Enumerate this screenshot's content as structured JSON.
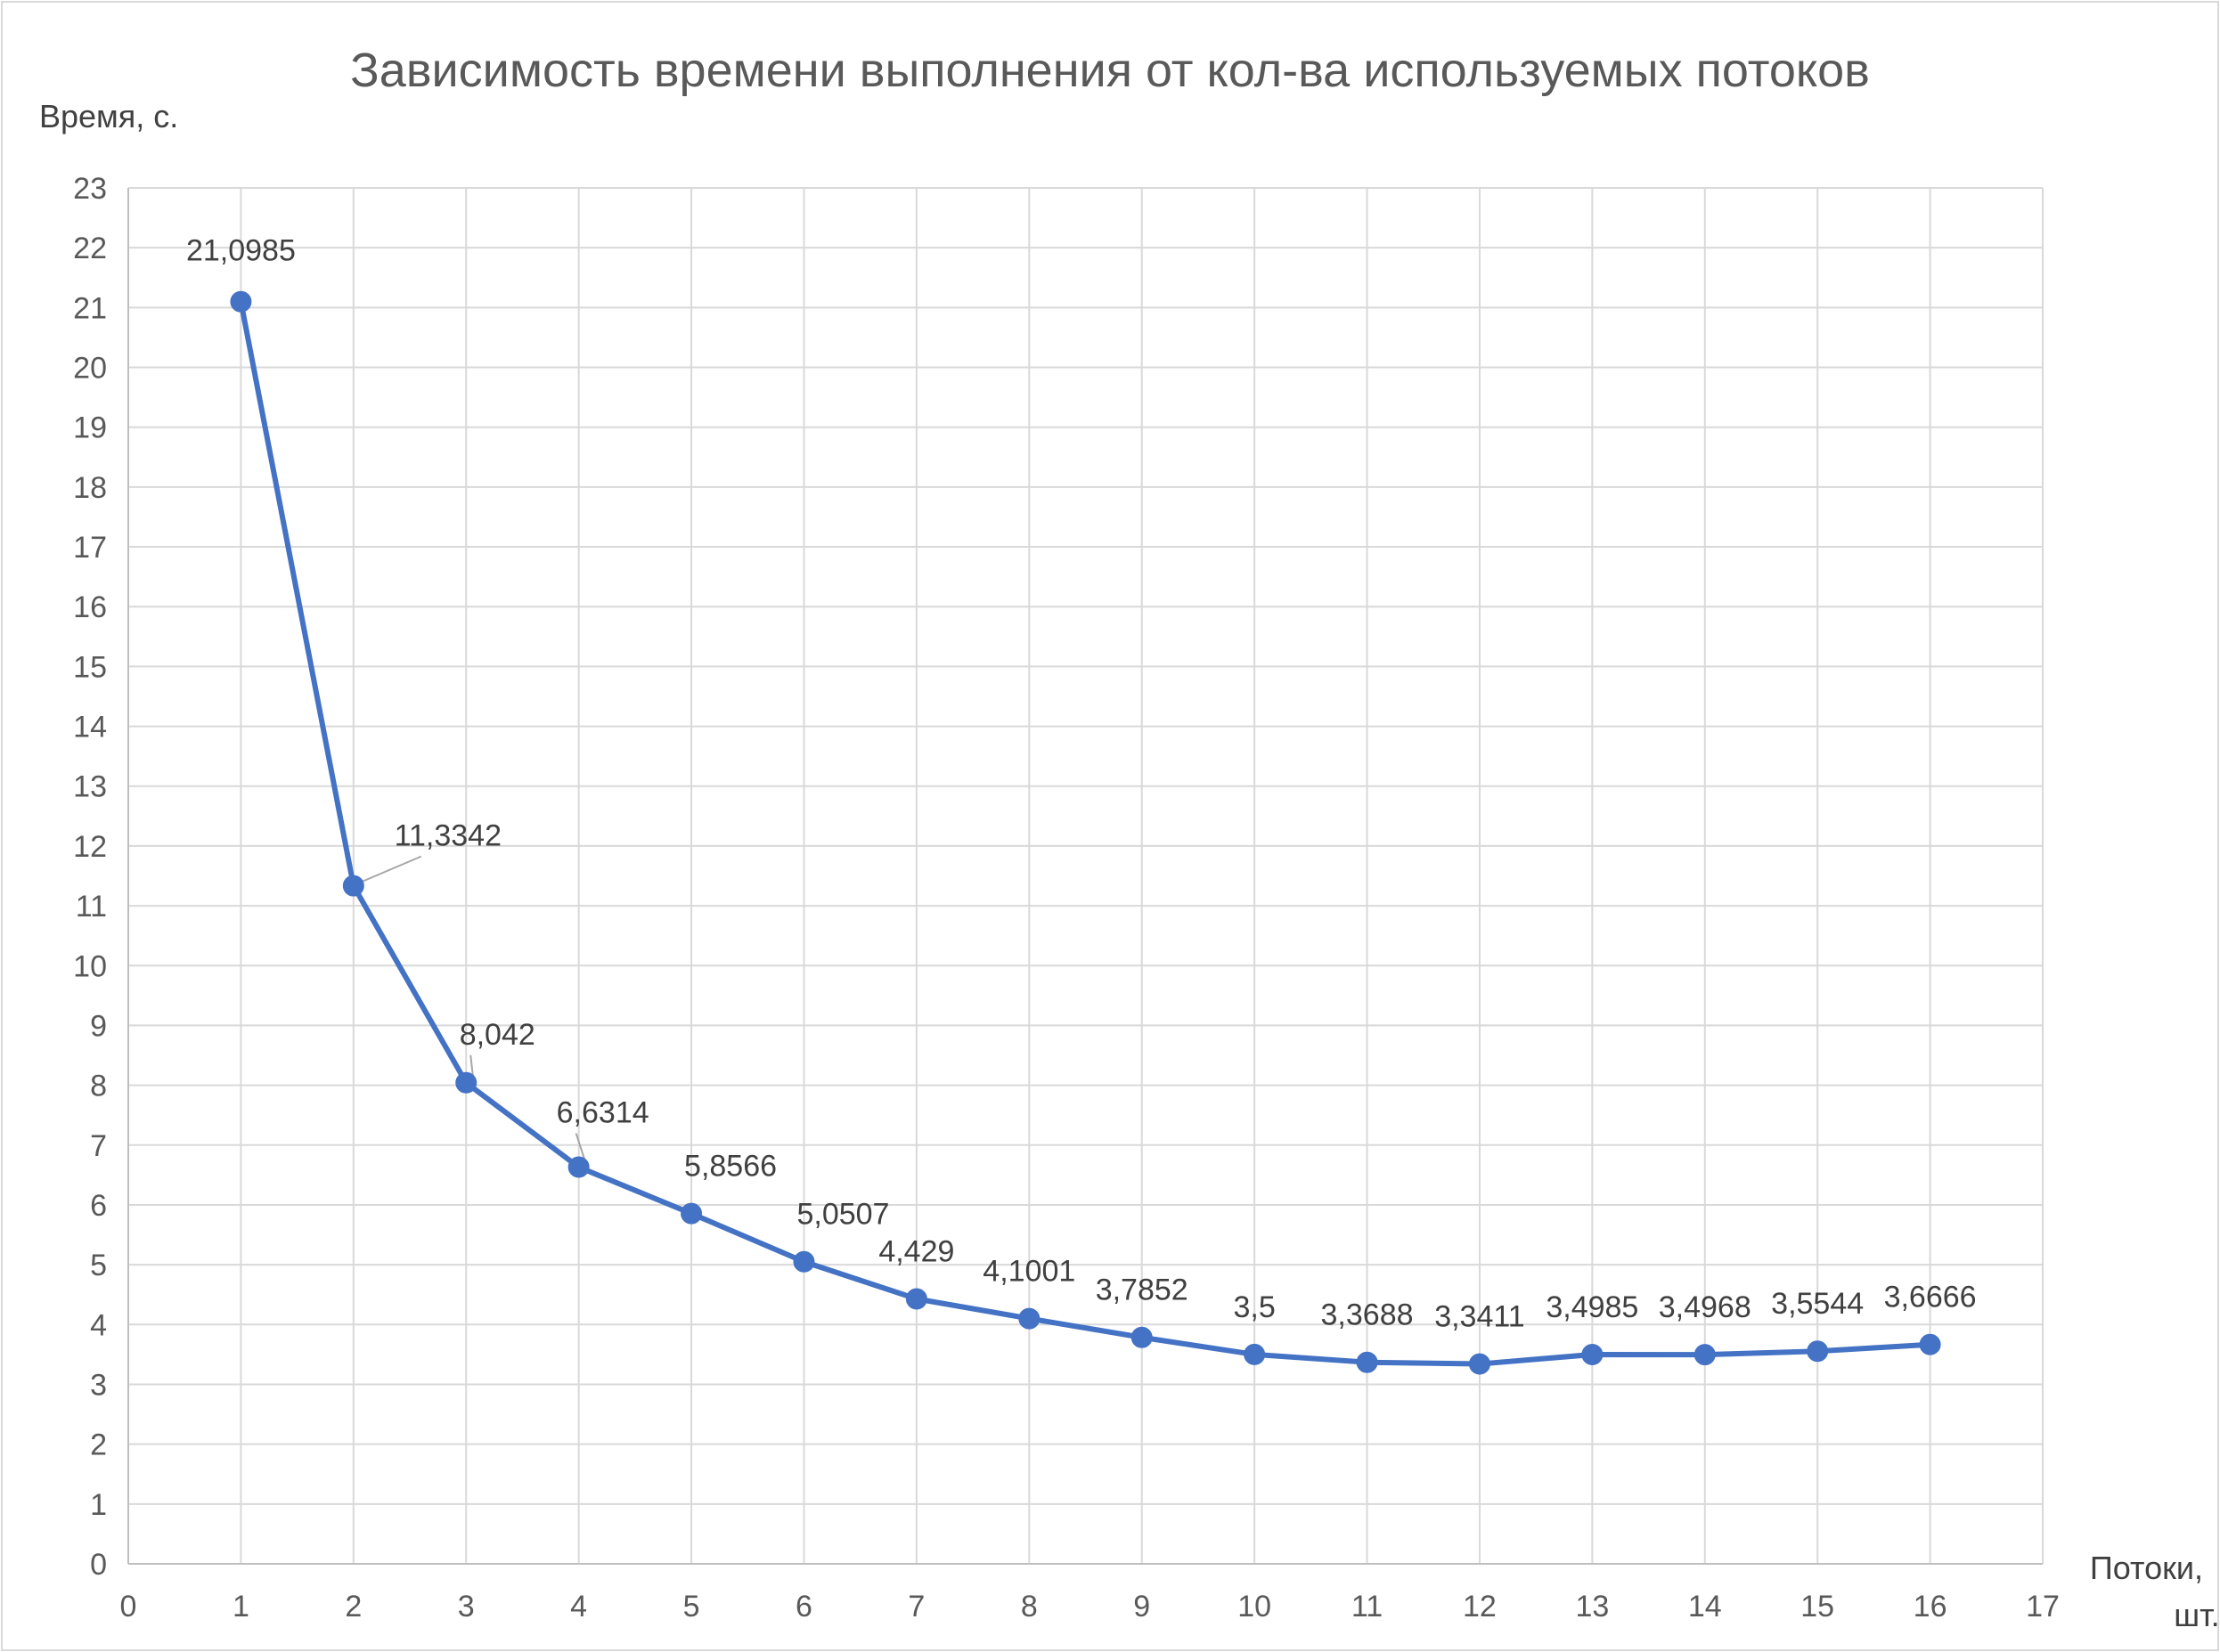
{
  "chart_data": {
    "type": "line",
    "title": "Зависимость времени выполнения от кол-ва используемых потоков",
    "ylabel": "Время, с.",
    "xlabel_lines": [
      "Потоки,",
      "шт."
    ],
    "xlim": [
      0,
      17
    ],
    "ylim": [
      0,
      23
    ],
    "x_ticks": [
      0,
      1,
      2,
      3,
      4,
      5,
      6,
      7,
      8,
      9,
      10,
      11,
      12,
      13,
      14,
      15,
      16,
      17
    ],
    "y_ticks": [
      0,
      1,
      2,
      3,
      4,
      5,
      6,
      7,
      8,
      9,
      10,
      11,
      12,
      13,
      14,
      15,
      16,
      17,
      18,
      19,
      20,
      21,
      22,
      23
    ],
    "grid": true,
    "legend": "none",
    "series": [
      {
        "color": "#4472C4",
        "marker": "circle",
        "points": [
          {
            "x": 1,
            "y": 21.0985,
            "label": "21,0985"
          },
          {
            "x": 2,
            "y": 11.3342,
            "label": "11,3342"
          },
          {
            "x": 3,
            "y": 8.042,
            "label": "8,042"
          },
          {
            "x": 4,
            "y": 6.6314,
            "label": "6,6314"
          },
          {
            "x": 5,
            "y": 5.8566,
            "label": "5,8566"
          },
          {
            "x": 6,
            "y": 5.0507,
            "label": "5,0507"
          },
          {
            "x": 7,
            "y": 4.429,
            "label": "4,429"
          },
          {
            "x": 8,
            "y": 4.1001,
            "label": "4,1001"
          },
          {
            "x": 9,
            "y": 3.7852,
            "label": "3,7852"
          },
          {
            "x": 10,
            "y": 3.5,
            "label": "3,5"
          },
          {
            "x": 11,
            "y": 3.3688,
            "label": "3,3688"
          },
          {
            "x": 12,
            "y": 3.3411,
            "label": "3,3411"
          },
          {
            "x": 13,
            "y": 3.4985,
            "label": "3,4985"
          },
          {
            "x": 14,
            "y": 3.4968,
            "label": "3,4968"
          },
          {
            "x": 15,
            "y": 3.5544,
            "label": "3,5544"
          },
          {
            "x": 16,
            "y": 3.6666,
            "label": "3,6666"
          }
        ]
      }
    ],
    "colors": {
      "grid": "#D9D9D9",
      "axis": "#BFBFBF",
      "leader_line": "#A6A6A6",
      "border": "#D9D9D9"
    }
  }
}
